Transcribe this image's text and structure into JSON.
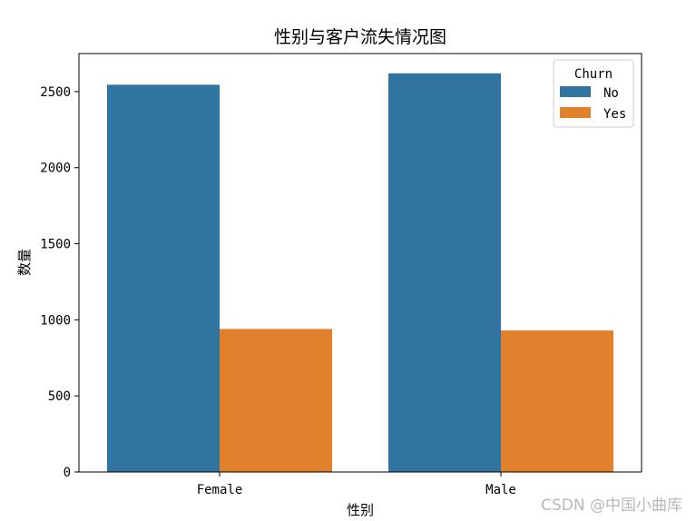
{
  "chart_data": {
    "type": "bar",
    "title": "性别与客户流失情况图",
    "xlabel": "性别",
    "ylabel": "数量",
    "categories": [
      "Female",
      "Male"
    ],
    "series": [
      {
        "name": "No",
        "values": [
          2545,
          2620
        ],
        "color": "#3274a1"
      },
      {
        "name": "Yes",
        "values": [
          940,
          930
        ],
        "color": "#e1812c"
      }
    ],
    "ylim": [
      0,
      2750
    ],
    "yticks": [
      0,
      500,
      1000,
      1500,
      2000,
      2500
    ],
    "legend": {
      "title": "Churn",
      "placement": "top-right"
    },
    "grid": false
  },
  "watermark": "CSDN @中国小曲库"
}
